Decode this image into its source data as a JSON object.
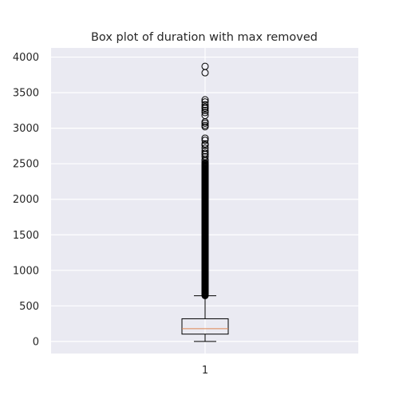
{
  "chart_data": {
    "type": "box",
    "title": "Box plot of duration with max removed",
    "categories": [
      "1"
    ],
    "ylim": [
      -170,
      4130
    ],
    "yticks": [
      0,
      500,
      1000,
      1500,
      2000,
      2500,
      3000,
      3500,
      4000
    ],
    "grid": true,
    "box": {
      "whisker_low": 0,
      "q1": 103,
      "median": 180,
      "q3": 319,
      "whisker_high": 643
    },
    "outlier_dense_range": [
      645,
      2520
    ],
    "outliers_sparse": [
      2540,
      2560,
      2600,
      2630,
      2650,
      2680,
      2720,
      2760,
      2780,
      2830,
      2860,
      3020,
      3040,
      3070,
      3090,
      3180,
      3220,
      3250,
      3280,
      3300,
      3330,
      3370,
      3400,
      3780,
      3870
    ],
    "colors": {
      "background": "#eaeaf2",
      "grid": "#ffffff",
      "box": "#000000",
      "median": "#dd8452"
    }
  }
}
